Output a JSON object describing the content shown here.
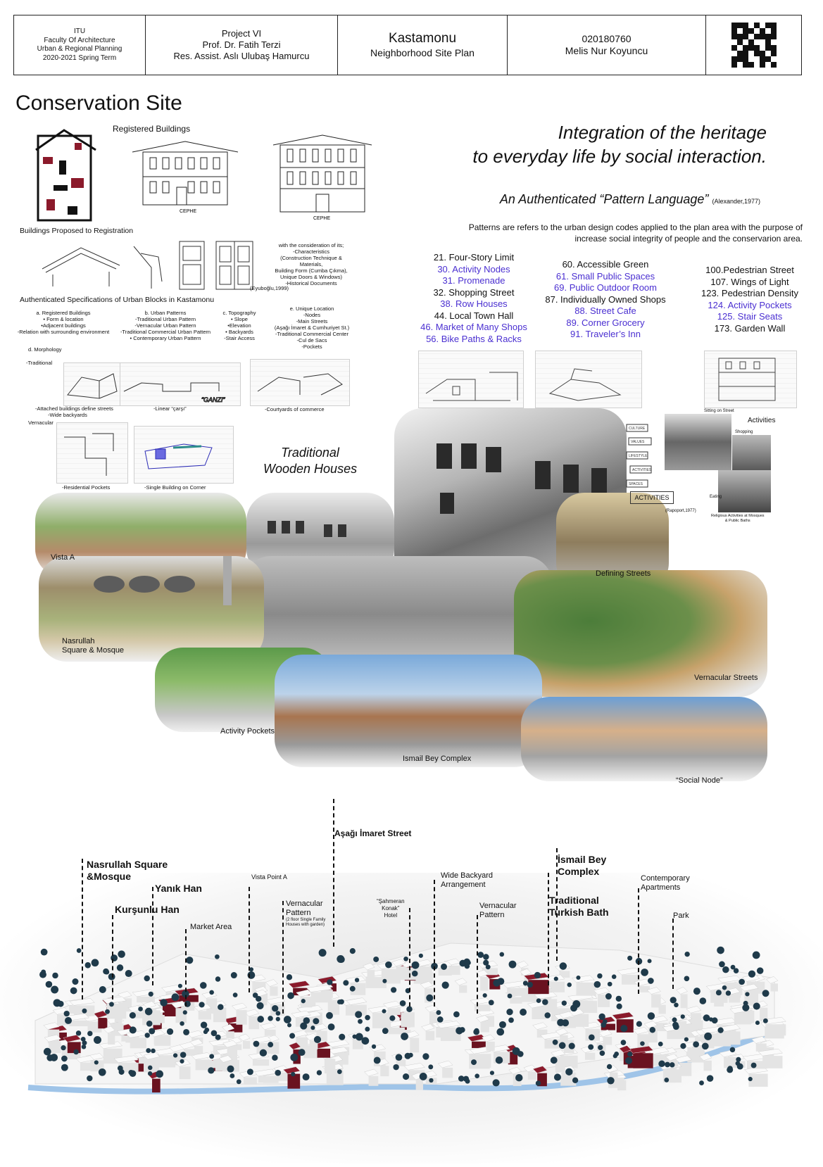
{
  "header": {
    "school": [
      "ITU",
      "Faculty Of Architecture",
      "Urban & Regional Planning",
      "2020-2021 Spring Term"
    ],
    "project": [
      "Project VI",
      "Prof. Dr. Fatih Terzi",
      "Res. Assist. Aslı Ulubaş Hamurcu"
    ],
    "site_name": "Kastamonu",
    "site_subtitle": "Neighborhood Site Plan",
    "student_id": "020180760",
    "student_name": "Melis Nur Koyuncu",
    "qr_label": "qr-code-icon"
  },
  "page_title": "Conservation Site",
  "headline_line1": "Integration of the heritage",
  "headline_line2": "to everyday life by social interaction.",
  "pattern_language": {
    "title": "An Authenticated “Pattern Language”",
    "citation": "(Alexander,1977)",
    "description": "Patterns are refers to the urban design codes applied to  the plan area with the purpose of increase social integrity of people and the conservarion area.",
    "columns": [
      [
        {
          "text": "21. Four-Story Limit",
          "hl": false
        },
        {
          "text": "30. Activity  Nodes",
          "hl": true
        },
        {
          "text": "31. Promenade",
          "hl": true
        },
        {
          "text": "32. Shopping Street",
          "hl": false
        },
        {
          "text": "38. Row Houses",
          "hl": true
        },
        {
          "text": "44. Local Town Hall",
          "hl": false
        },
        {
          "text": "46. Market of Many Shops",
          "hl": true
        },
        {
          "text": "56. Bike Paths & Racks",
          "hl": true
        }
      ],
      [
        {
          "text": "60. Accessible Green",
          "hl": false
        },
        {
          "text": "61. Small Public Spaces",
          "hl": true
        },
        {
          "text": "69. Public Outdoor Room",
          "hl": true
        },
        {
          "text": "87. Individually Owned Shops",
          "hl": false
        },
        {
          "text": "88. Street Cafe",
          "hl": true
        },
        {
          "text": "89. Corner Grocery",
          "hl": true
        },
        {
          "text": "91. Traveler’s Inn",
          "hl": true
        }
      ],
      [
        {
          "text": "100.Pedestrian Street",
          "hl": false
        },
        {
          "text": "107. Wings of Light",
          "hl": false
        },
        {
          "text": "123. Pedestrian Density",
          "hl": false
        },
        {
          "text": "124. Activity Pockets",
          "hl": true
        },
        {
          "text": "125. Stair Seats",
          "hl": true
        },
        {
          "text": "173. Garden Wall",
          "hl": false
        }
      ]
    ]
  },
  "left_panel": {
    "registered_buildings": "Registered Buildings",
    "proposed": "Buildings Proposed to Registration",
    "eyuboglu": "(Eyuboğlu,1999)",
    "consideration": [
      "with the consideration of its;",
      "-Characteristics",
      "(Construction Technique & Materials,",
      "Building Form (Cumba Çıkma),",
      "Unique Doors & Windows)",
      "-Historical Documents"
    ],
    "specs_title": "Authenticated Specifications of Urban Blocks in Kastamonu",
    "spec_a": [
      "a. Registered Buildings",
      "• Form & location",
      "•Adjacent buildings",
      "-Relation with surrounding environment"
    ],
    "spec_b": [
      "b. Urban Patterns",
      "-Traditional Urban Pattern",
      "-Vernacular Urban Pattern",
      "-Traditional Commercial Urban Pattern",
      "• Contemporary Urban Pattern"
    ],
    "spec_c": [
      "c. Topography",
      "• Slope",
      "•Elevation",
      "• Backyards",
      "-Stair Access"
    ],
    "spec_e": [
      "e. Unique Location",
      "-Nodes",
      "-Main Streets",
      "(Aşağı İmaret & Cumhuriyet St.)",
      "-Traditional Commercial Center",
      "-Cul de Sacs",
      "-Pockets"
    ],
    "spec_d": "d. Morphology",
    "traditional": "-Traditional",
    "attached": [
      "-Attached buildings define streets",
      "-Wide backyards"
    ],
    "linear": "-Linear “çarşı”",
    "courtyards": "-Courtyards of commerce",
    "vernacular": "Vernacular",
    "residential": "-Residential Pockets",
    "single": "-Single Building on Corner",
    "ganzi": "“GANZI”"
  },
  "photo_labels": {
    "traditional_houses": [
      "Traditional",
      "Wooden Houses"
    ],
    "vista_a": "Vista A",
    "nasrullah": [
      "Nasrullah",
      "Square & Mosque"
    ],
    "defining_streets": "Defining Streets",
    "vernacular_streets": "Vernacular Streets",
    "activity_pockets": "Activity Pockets",
    "ismail_bey": "Ismail Bey Complex",
    "social_node": "“Social Node”",
    "activities": "Activities",
    "sitting": "Sitting on Street",
    "shopping": "Shopping",
    "eating": "Eating",
    "rapoport": "(Rapoport,1977)",
    "religious": [
      "Religious Activities at Mosques",
      "& Public Baths"
    ],
    "activities_sketch": "ACTIVITIES",
    "sketch_words": [
      "CULTURE",
      "VALUES",
      "LIFESTYLE",
      "ACTIVITIES",
      "SPACES"
    ]
  },
  "model_callouts": {
    "asagi": "Aşağı İmaret Street",
    "nasrullah": [
      "Nasrullah Square",
      "&Mosque"
    ],
    "yanik": "Yanık Han",
    "kursunlu": "Kurşunlu Han",
    "market": "Market Area",
    "vista": "Vista Point  A",
    "vernacular1": [
      "Vernacular",
      "Pattern"
    ],
    "vernacular1_note": [
      "(2 floor Single Family",
      "Houses with garden)"
    ],
    "sahmeran": [
      "“Şahmeran",
      "Konak”",
      "Hotel"
    ],
    "wide_backyard": [
      "Wide Backyard",
      "Arrangement"
    ],
    "vernacular2": [
      "Vernacular",
      "Pattern"
    ],
    "ismail": [
      "İsmail Bey",
      "Complex"
    ],
    "turkish_bath": [
      "Traditional",
      "Turkish Bath"
    ],
    "contemporary": [
      "Contemporary",
      "Apartments"
    ],
    "park": "Park"
  },
  "colors": {
    "highlight": "#4a2fd1",
    "registered": "#8b1a2b",
    "tree": "#1f3a4a",
    "river": "#9fc4e8"
  }
}
